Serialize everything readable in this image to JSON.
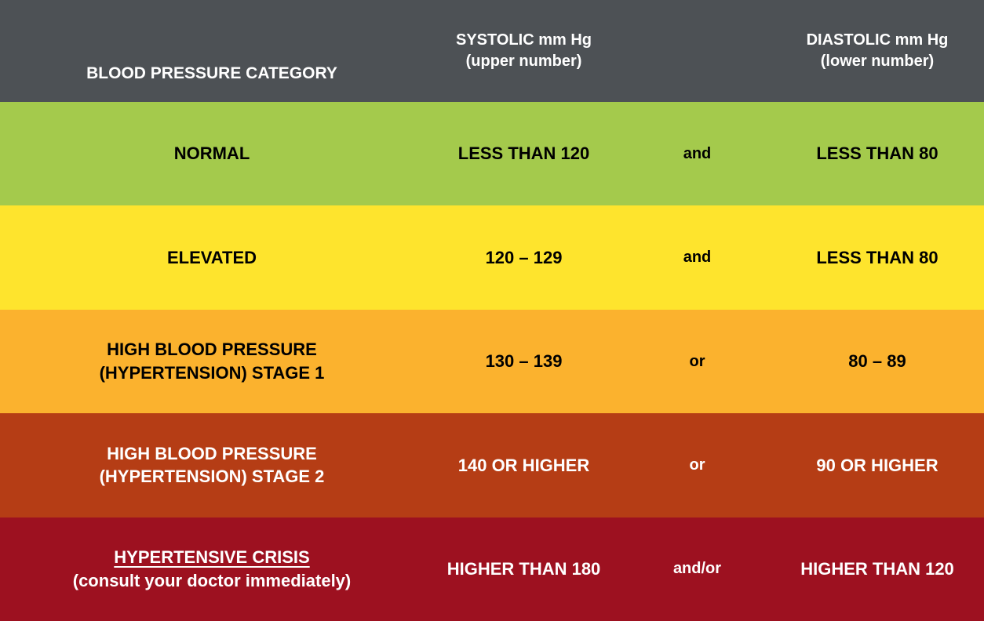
{
  "header": {
    "category": "BLOOD PRESSURE CATEGORY",
    "systolic_line1": "SYSTOLIC mm Hg",
    "systolic_line2": "(upper number)",
    "connector": "",
    "diastolic_line1": "DIASTOLIC mm Hg",
    "diastolic_line2": "(lower number)",
    "bg_color": "#4d5155",
    "text_color": "#ffffff"
  },
  "rows": [
    {
      "category_line1": "NORMAL",
      "category_line2": "",
      "systolic": "LESS THAN 120",
      "connector": "and",
      "diastolic": "LESS THAN 80",
      "row_color": "#a4ca4c",
      "text_color": "#000000"
    },
    {
      "category_line1": "ELEVATED",
      "category_line2": "",
      "systolic": "120 – 129",
      "connector": "and",
      "diastolic": "LESS THAN 80",
      "row_color": "#fee42d",
      "text_color": "#000000"
    },
    {
      "category_line1": "HIGH BLOOD PRESSURE",
      "category_line2": "(HYPERTENSION) STAGE 1",
      "systolic": "130 – 139",
      "connector": "or",
      "diastolic": "80 – 89",
      "row_color": "#fbb22e",
      "text_color": "#000000"
    },
    {
      "category_line1": "HIGH BLOOD PRESSURE",
      "category_line2": "(HYPERTENSION) STAGE 2",
      "systolic": "140 OR HIGHER",
      "connector": "or",
      "diastolic": "90 OR HIGHER",
      "row_color": "#b53d15",
      "text_color": "#ffffff"
    },
    {
      "category_line1": "HYPERTENSIVE CRISIS",
      "category_line2": "(consult your doctor immediately)",
      "systolic": "HIGHER THAN 180",
      "connector": "and/or",
      "diastolic": "HIGHER THAN 120",
      "row_color": "#9d1120",
      "text_color": "#ffffff"
    }
  ],
  "chart_data": {
    "type": "table",
    "columns": [
      "BLOOD PRESSURE CATEGORY",
      "SYSTOLIC mm Hg (upper number)",
      "connector",
      "DIASTOLIC mm Hg (lower number)"
    ],
    "rows": [
      [
        "NORMAL",
        "LESS THAN 120",
        "and",
        "LESS THAN 80"
      ],
      [
        "ELEVATED",
        "120 – 129",
        "and",
        "LESS THAN 80"
      ],
      [
        "HIGH BLOOD PRESSURE (HYPERTENSION) STAGE 1",
        "130 – 139",
        "or",
        "80 – 89"
      ],
      [
        "HIGH BLOOD PRESSURE (HYPERTENSION) STAGE 2",
        "140 OR HIGHER",
        "or",
        "90 OR HIGHER"
      ],
      [
        "HYPERTENSIVE CRISIS (consult your doctor immediately)",
        "HIGHER THAN 180",
        "and/or",
        "HIGHER THAN 120"
      ]
    ],
    "row_colors": [
      "#a4ca4c",
      "#fee42d",
      "#fbb22e",
      "#b53d15",
      "#9d1120"
    ],
    "header_color": "#4d5155",
    "legend_position": "none",
    "grid": false
  }
}
